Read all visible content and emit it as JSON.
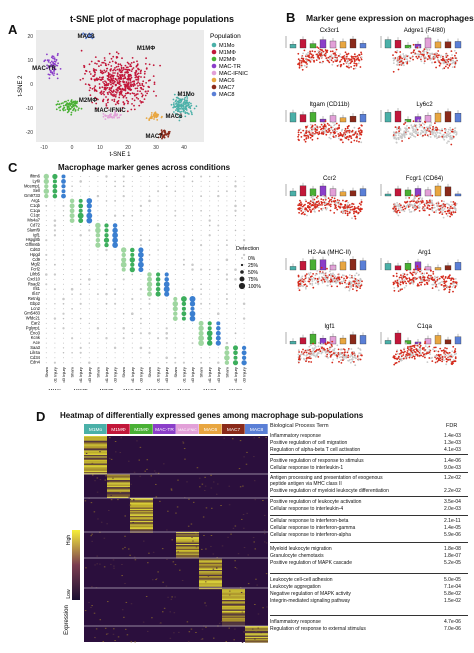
{
  "panel_a": {
    "letter": "A",
    "title": "t-SNE plot of macrophage populations",
    "xlabel": "t-SNE 1",
    "ylabel": "t-SNE 2",
    "x_ticks": [
      "-10",
      "0",
      "10",
      "20",
      "30",
      "40"
    ],
    "y_ticks": [
      "20",
      "10",
      "0",
      "-10",
      "-20"
    ],
    "legend_title": "Population",
    "clusters": [
      {
        "name": "M1Mo",
        "color": "#4ab0a8"
      },
      {
        "name": "M1MΦ",
        "color": "#c2173a"
      },
      {
        "name": "M2MΦ",
        "color": "#49b034"
      },
      {
        "name": "MAC-TR",
        "color": "#8b3ec9"
      },
      {
        "name": "MAC-IFNIC",
        "color": "#e2a0d8"
      },
      {
        "name": "MAC6",
        "color": "#e8a640"
      },
      {
        "name": "MAC7",
        "color": "#8a2a1a"
      },
      {
        "name": "MAC8",
        "color": "#5a7fd6"
      }
    ],
    "labels": [
      "MAC8",
      "M1MΦ",
      "MAC-TR",
      "M2MΦ",
      "M1Mo",
      "MAC-IFNIC",
      "MAC6",
      "MAC7"
    ]
  },
  "panel_b": {
    "letter": "B",
    "title": "Marker gene expression on macrophages",
    "genes": [
      "Cx3cr1",
      "Adgre1 (F4/80)",
      "Itgam (CD11b)",
      "Ly6c2",
      "Ccr2",
      "Fcgr1 (CD64)",
      "H2-Aa (MHC-II)",
      "Arg1",
      "Igf1",
      "C1qa"
    ]
  },
  "panel_c": {
    "letter": "C",
    "title": "Macrophage marker genes across conditions",
    "genes": [
      "Ifitm6",
      "Ly6i",
      "Mcemp1",
      "Sell",
      "Gm9733",
      "Arg1",
      "C1qb",
      "C1qa",
      "C1qc",
      "Ms4a7",
      "Cd72",
      "Slamf9",
      "Igf1",
      "Hspg8b",
      "Gfflm6b",
      "Cd63",
      "Hpgd",
      "Cd9",
      "Mgl2",
      "Fcrl2",
      "Lilrb5",
      "Cxcl10",
      "Rsad2",
      "Ifit1",
      "Ifi47",
      "Retnlg",
      "Gbp2",
      "Lcn2",
      "Gm5483",
      "Wfdc21",
      "Ear2",
      "Pglyrp1",
      "Eno3",
      "Kcnk",
      "Ace",
      "Saa3",
      "Lilr4a",
      "Cd34",
      "Edn4"
    ],
    "x_labels": [
      "Sham",
      "d1 Injury",
      "d3 Injury",
      "Sham",
      "d1 Injury",
      "d3 Injury",
      "Sham",
      "d1 Injury",
      "d3 Injury",
      "Sham",
      "d1 Injury",
      "d3 Injury",
      "Sham",
      "d1 Injury",
      "d3 Injury",
      "Sham",
      "d1 Injury",
      "d3 Injury",
      "Sham",
      "d1 Injury",
      "d3 Injury",
      "Sham",
      "d1 Injury",
      "d3 Injury"
    ],
    "groups": [
      "M1Mo",
      "M1MΦ",
      "M2MΦ",
      "MAC-TR",
      "MAC-IFNIC",
      "MAC6",
      "MAC7",
      "MAC8"
    ],
    "legend_title": "Detection",
    "legend_levels": [
      "0%",
      "25%",
      "50%",
      "75%",
      "100%"
    ]
  },
  "panel_d": {
    "letter": "D",
    "title": "Heatmap of differentially expressed genes among macrophage sub-populations",
    "columns": [
      {
        "name": "M1Mo",
        "color": "#4ab0a8"
      },
      {
        "name": "M1MΦ",
        "color": "#c2173a"
      },
      {
        "name": "M2MΦ",
        "color": "#49b034"
      },
      {
        "name": "MAC-TR",
        "color": "#8b3ec9"
      },
      {
        "name": "MAC-IFNIC",
        "color": "#e2a0d8"
      },
      {
        "name": "MAC6",
        "color": "#e8a640"
      },
      {
        "name": "MAC7",
        "color": "#8a2a1a"
      },
      {
        "name": "MAC8",
        "color": "#5a7fd6"
      }
    ],
    "bp_header": "Biological Process Term",
    "fdr_header": "FDR",
    "scale_high": "High",
    "scale_low": "Low",
    "scale_title": "Expression",
    "terms": [
      {
        "term": "Inflammatory response",
        "fdr": "1.4e-03"
      },
      {
        "term": "Positive regulation of cell migration",
        "fdr": "1.3e-03"
      },
      {
        "term": "Regulation of alpha-beta T cell activation",
        "fdr": "4.1e-03"
      },
      {
        "term": "Positive regulation of response to stimulus",
        "fdr": "1.4e-06"
      },
      {
        "term": "Cellular response to interleukin-1",
        "fdr": "9.0e-03"
      },
      {
        "term": "Antigen processing and presentation of exogenous",
        "fdr": "1.2e-02"
      },
      {
        "term": "peptide antigen via MHC class II",
        "fdr": ""
      },
      {
        "term": "Positive regulation of myeloid leukocyte differentiation",
        "fdr": "2.2e-02"
      },
      {
        "term": "Positive regulation of leukocyte activation",
        "fdr": "3.5e-04"
      },
      {
        "term": "Cellular response to interleukin-4",
        "fdr": "2.0e-03"
      },
      {
        "term": "Cellular response to interferon-beta",
        "fdr": "2.1e-11"
      },
      {
        "term": "Cellular response to interferon-gamma",
        "fdr": "1.4e-05"
      },
      {
        "term": "Cellular response to interferon-alpha",
        "fdr": "5.9e-06"
      },
      {
        "term": "Myeloid leukocyte migration",
        "fdr": "1.8e-08"
      },
      {
        "term": "Granulocyte chemotaxis",
        "fdr": "1.8e-07"
      },
      {
        "term": "Positive regulation of MAPK cascade",
        "fdr": "5.2e-05"
      },
      {
        "term": "Leukocyte cell-cell adhesion",
        "fdr": "5.0e-05"
      },
      {
        "term": "Leukocyte aggregation",
        "fdr": "7.1e-04"
      },
      {
        "term": "Negative regulation of MAPK activity",
        "fdr": "5.8e-02"
      },
      {
        "term": "Integrin-mediated signaling pathway",
        "fdr": "1.5e-02"
      },
      {
        "term": "Inflammatory response",
        "fdr": "4.7e-06"
      },
      {
        "term": "Regulation of response to external stimulus",
        "fdr": "7.0e-06"
      }
    ]
  }
}
